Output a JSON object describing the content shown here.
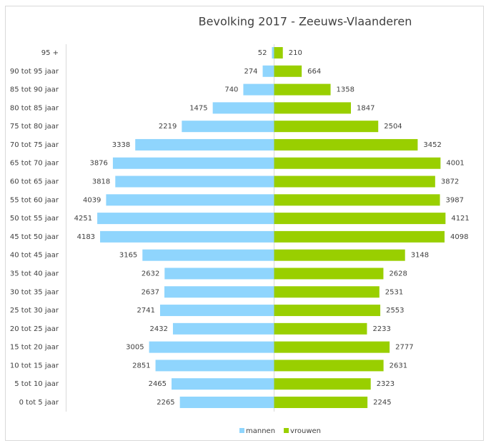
{
  "chart_data": {
    "type": "population-pyramid",
    "title": "Bevolking 2017 - Zeeuws-Vlaanderen",
    "categories": [
      "95 +",
      "90 tot 95 jaar",
      "85 tot 90 jaar",
      "80 tot 85 jaar",
      "75 tot 80 jaar",
      "70 tot 75 jaar",
      "65 tot 70 jaar",
      "60 tot 65 jaar",
      "55 tot 60 jaar",
      "50 tot 55 jaar",
      "45 tot 50 jaar",
      "40 tot 45 jaar",
      "35 tot 40 jaar",
      "30 tot 35 jaar",
      "25 tot 30 jaar",
      "20 tot 25 jaar",
      "15 tot 20 jaar",
      "10 tot 15 jaar",
      "5 tot 10 jaar",
      "0 tot 5 jaar"
    ],
    "series": [
      {
        "name": "mannen",
        "color": "#8fd5fd",
        "side": "left",
        "values": [
          52,
          274,
          740,
          1475,
          2219,
          3338,
          3876,
          3818,
          4039,
          4251,
          4183,
          3165,
          2632,
          2637,
          2741,
          2432,
          3005,
          2851,
          2465,
          2265
        ]
      },
      {
        "name": "vrouwen",
        "color": "#99cf00",
        "side": "right",
        "values": [
          210,
          664,
          1358,
          1847,
          2504,
          3452,
          4001,
          3872,
          3987,
          4121,
          4098,
          3148,
          2628,
          2531,
          2553,
          2233,
          2777,
          2631,
          2323,
          2245
        ]
      }
    ],
    "legend": "bottom"
  }
}
